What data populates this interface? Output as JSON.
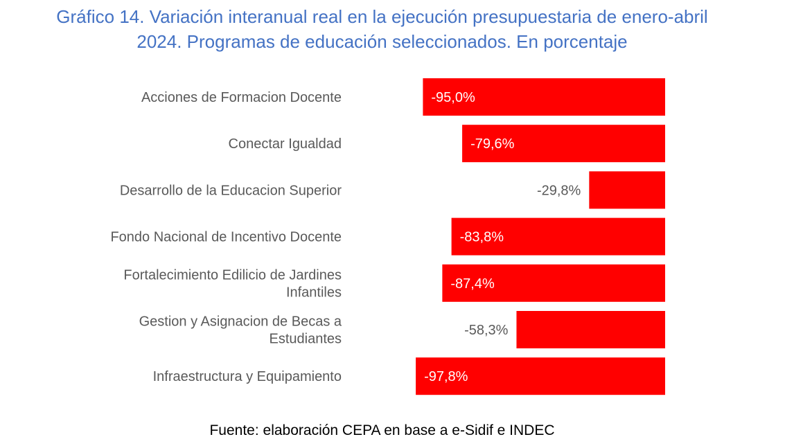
{
  "chart_data": {
    "type": "bar",
    "orientation": "horizontal",
    "title": "Gráfico 14. Variación interanual real en la ejecución presupuestaria de enero-abril 2024. Programas de educación seleccionados. En porcentaje",
    "title_lines": [
      "Gráfico 14. Variación interanual real en la ejecución presupuestaria de enero-abril",
      "2024. Programas de educación seleccionados. En porcentaje"
    ],
    "categories": [
      "Acciones de Formacion Docente",
      "Conectar Igualdad",
      "Desarrollo de la Educacion Superior",
      "Fondo Nacional de Incentivo Docente",
      "Fortalecimiento Edilicio de Jardines Infantiles",
      "Gestion y Asignacion de Becas a Estudiantes",
      "Infraestructura y Equipamiento"
    ],
    "category_lines": [
      [
        "Acciones de Formacion Docente"
      ],
      [
        "Conectar Igualdad"
      ],
      [
        "Desarrollo de la Educacion Superior"
      ],
      [
        "Fondo Nacional de Incentivo Docente"
      ],
      [
        "Fortalecimiento Edilicio de Jardines",
        "Infantiles"
      ],
      [
        "Gestion y Asignacion de Becas a",
        "Estudiantes"
      ],
      [
        "Infraestructura y Equipamiento"
      ]
    ],
    "values": [
      -95.0,
      -79.6,
      -29.8,
      -83.8,
      -87.4,
      -58.3,
      -97.8
    ],
    "data_labels": [
      "-95,0%",
      "-79,6%",
      "-29,8%",
      "-83,8%",
      "-87,4%",
      "-58,3%",
      "-97,8%"
    ],
    "xlim": [
      -100,
      0
    ],
    "xlabel": "",
    "ylabel": "",
    "grid": false,
    "legend": "none",
    "bar_color": "#ff0000",
    "label_inside_color": "#ffffff",
    "label_outside_color": "#595959",
    "category_label_color": "#595959"
  },
  "source": "Fuente: elaboración CEPA en base a e-Sidif e INDEC"
}
